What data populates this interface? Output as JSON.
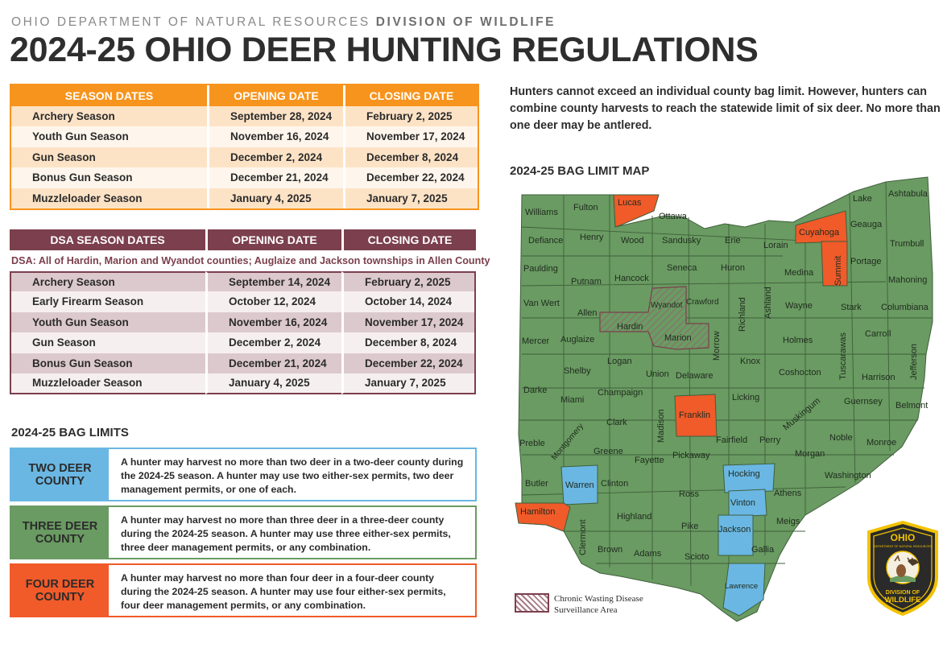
{
  "header": {
    "kicker_dept": "OHIO DEPARTMENT OF NATURAL RESOURCES",
    "kicker_division": "DIVISION OF WILDLIFE",
    "title": "2024-25 OHIO DEER HUNTING REGULATIONS"
  },
  "season_table": {
    "headers": [
      "SEASON DATES",
      "OPENING DATE",
      "CLOSING DATE"
    ],
    "rows": [
      [
        "Archery Season",
        "September 28, 2024",
        "February 2, 2025"
      ],
      [
        "Youth Gun Season",
        "November 16, 2024",
        "November 17, 2024"
      ],
      [
        "Gun Season",
        "December 2, 2024",
        "December 8, 2024"
      ],
      [
        "Bonus Gun Season",
        "December 21, 2024",
        "December 22, 2024"
      ],
      [
        "Muzzleloader Season",
        "January 4, 2025",
        "January 7, 2025"
      ]
    ]
  },
  "dsa_table": {
    "headers": [
      "DSA SEASON DATES",
      "OPENING DATE",
      "CLOSING DATE"
    ],
    "note": "DSA: All of Hardin, Marion and Wyandot counties; Auglaize and Jackson townships in Allen County",
    "rows": [
      [
        "Archery Season",
        "September 14, 2024",
        "February 2, 2025"
      ],
      [
        "Early Firearm Season",
        "October 12, 2024",
        "October 14, 2024"
      ],
      [
        "Youth Gun Season",
        "November 16, 2024",
        "November 17, 2024"
      ],
      [
        "Gun Season",
        "December 2, 2024",
        "December 8, 2024"
      ],
      [
        "Bonus Gun Season",
        "December 21, 2024",
        "December 22, 2024"
      ],
      [
        "Muzzleloader Season",
        "January 4, 2025",
        "January 7, 2025"
      ]
    ]
  },
  "bag_limits": {
    "heading": "2024-25 BAG LIMITS",
    "items": [
      {
        "label": "TWO DEER COUNTY",
        "color": "#6ab7e3",
        "text": "A hunter may harvest no more than two deer in a two-deer county during the 2024-25 season. A hunter may use two either-sex permits, two deer management permits, or one of each."
      },
      {
        "label": "THREE DEER COUNTY",
        "color": "#6a9b62",
        "text": "A hunter may harvest no more than three deer in a three-deer county during the 2024-25 season. A hunter may use three either-sex permits, three deer management permits, or any combination."
      },
      {
        "label": "FOUR DEER COUNTY",
        "color": "#f15a29",
        "text": "A hunter may harvest no more than four deer in a four-deer county during the 2024-25 season. A hunter may use four either-sex permits, four deer management permits, or any combination."
      }
    ]
  },
  "intro": "Hunters cannot exceed an individual county bag limit. However, hunters can combine county harvests to reach the statewide limit of six deer. No more than one deer may be antlered.",
  "map": {
    "heading": "2024-25 BAG LIMIT MAP",
    "colors": {
      "three": "#6a9b62",
      "four": "#f15a29",
      "two": "#6ab7e3",
      "cwd": "#7b3f4d"
    },
    "counties": {
      "williams": "Williams",
      "fulton": "Fulton",
      "lucas": "Lucas",
      "ottawa": "Ottawa",
      "defiance": "Defiance",
      "henry": "Henry",
      "wood": "Wood",
      "sandusky": "Sandusky",
      "erie": "Erie",
      "lorain": "Lorain",
      "cuyahoga": "Cuyahoga",
      "lake": "Lake",
      "geauga": "Geauga",
      "ashtabula": "Ashtabula",
      "trumbull": "Trumbull",
      "paulding": "Paulding",
      "putnam": "Putnam",
      "hancock": "Hancock",
      "seneca": "Seneca",
      "huron": "Huron",
      "medina": "Medina",
      "summit": "Summit",
      "portage": "Portage",
      "mahoning": "Mahoning",
      "vanwert": "Van Wert",
      "allen": "Allen",
      "wyandot": "Wyandot",
      "crawford": "Crawford",
      "richland": "Richland",
      "ashland": "Ashland",
      "wayne": "Wayne",
      "stark": "Stark",
      "columbiana": "Columbiana",
      "mercer": "Mercer",
      "auglaize": "Auglaize",
      "hardin": "Hardin",
      "marion": "Marion",
      "morrow": "Morrow",
      "knox": "Knox",
      "holmes": "Holmes",
      "tuscarawas": "Tuscarawas",
      "carroll": "Carroll",
      "jefferson": "Jefferson",
      "harrison": "Harrison",
      "coshocton": "Coshocton",
      "logan": "Logan",
      "shelby": "Shelby",
      "union": "Union",
      "delaware": "Delaware",
      "darke": "Darke",
      "miami": "Miami",
      "champaign": "Champaign",
      "licking": "Licking",
      "muskingum": "Muskingum",
      "guernsey": "Guernsey",
      "belmont": "Belmont",
      "franklin": "Franklin",
      "clark": "Clark",
      "madison": "Madison",
      "preble": "Preble",
      "montgomery": "Montgomery",
      "greene": "Greene",
      "fairfield": "Fairfield",
      "perry": "Perry",
      "noble": "Noble",
      "monroe": "Monroe",
      "morgan": "Morgan",
      "washington": "Washington",
      "fayette": "Fayette",
      "pickaway": "Pickaway",
      "butler": "Butler",
      "warren": "Warren",
      "clinton": "Clinton",
      "hocking": "Hocking",
      "ross": "Ross",
      "athens": "Athens",
      "vinton": "Vinton",
      "hamilton": "Hamilton",
      "highland": "Highland",
      "meigs": "Meigs",
      "pike": "Pike",
      "jackson": "Jackson",
      "clermont": "Clermont",
      "brown": "Brown",
      "adams": "Adams",
      "scioto": "Scioto",
      "gallia": "Gallia",
      "lawrence": "Lawrence"
    },
    "legend_line1": "Chronic Wasting Disease",
    "legend_line2": "Surveillance Area"
  },
  "logo": {
    "top_text": "OHIO",
    "ring_text": "DEPARTMENT OF NATURAL RESOURCES",
    "bottom_line1": "DIVISION OF",
    "bottom_line2": "WILDLIFE"
  }
}
